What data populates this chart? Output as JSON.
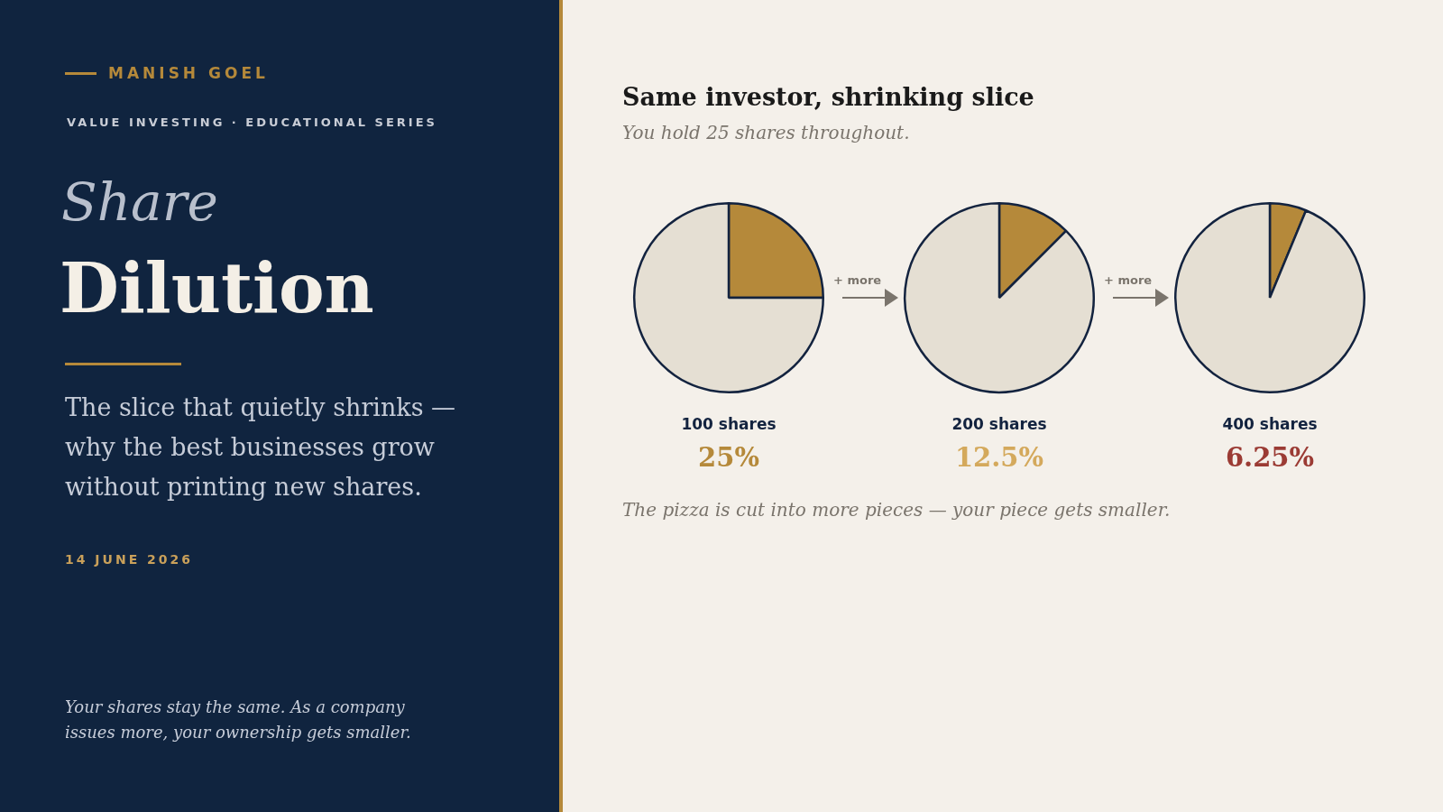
{
  "chart_data": [
    {
      "type": "other",
      "annotations": [
        "MANISH GOEL",
        "VALUE INVESTING  ·  EDUCATIONAL SERIES",
        "Share",
        "Dilution",
        "The slice that quietly shrinks — why the best businesses grow without printing new shares.",
        "14 JUNE 2026",
        "Your shares stay the same. As a company issues more, your ownership gets smaller."
      ]
    },
    {
      "type": "other",
      "title": "Same investor, shrinking slice",
      "subtitle": "You hold 25 shares throughout.",
      "annotations": [
        "The pizza is cut into more pieces — your piece gets smaller.",
        "+ more",
        "+ more"
      ]
    },
    {
      "type": "pie",
      "xlabel": "100 shares",
      "categories": [
        null,
        null
      ],
      "values": [
        25,
        75
      ],
      "colors": [
        "#b5893a",
        "#e5dfd3"
      ],
      "annotations": [
        "25%"
      ]
    },
    {
      "type": "pie",
      "xlabel": "200 shares",
      "categories": [
        null,
        null
      ],
      "values": [
        12.5,
        87.5
      ],
      "colors": [
        "#b5893a",
        "#e5dfd3"
      ],
      "annotations": [
        "12.5%"
      ]
    },
    {
      "type": "pie",
      "xlabel": "400 shares",
      "categories": [
        null,
        null
      ],
      "values": [
        6.25,
        93.75
      ],
      "colors": [
        "#b5893a",
        "#e5dfd3"
      ],
      "annotations": [
        "6.25%"
      ]
    }
  ]
}
